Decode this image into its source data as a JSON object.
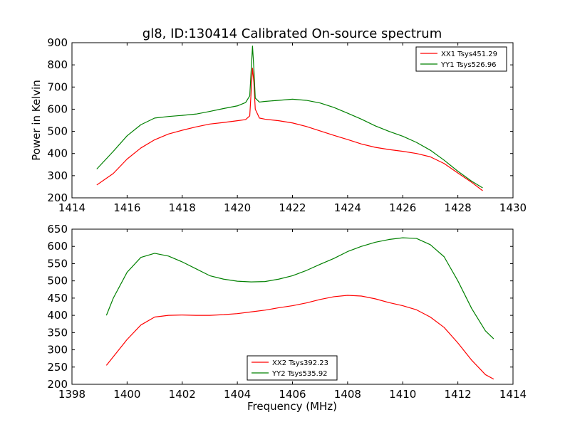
{
  "title": "gl8, ID:130414 Calibrated On-source spectrum",
  "chart_data": [
    {
      "type": "line",
      "title": "gl8, ID:130414 Calibrated On-source spectrum",
      "xlabel": "",
      "ylabel": "Power in Kelvin",
      "xlim": [
        1414,
        1430
      ],
      "ylim": [
        200,
        900
      ],
      "xticks": [
        1414,
        1416,
        1418,
        1420,
        1422,
        1424,
        1426,
        1428,
        1430
      ],
      "yticks": [
        200,
        300,
        400,
        500,
        600,
        700,
        800,
        900
      ],
      "grid": false,
      "legend_position": "top-right",
      "series": [
        {
          "name": "XX1 Tsys451.29",
          "color": "#ff0000",
          "x": [
            1414.9,
            1415.5,
            1416,
            1416.5,
            1417,
            1417.5,
            1418,
            1418.5,
            1419,
            1419.5,
            1420,
            1420.3,
            1420.45,
            1420.55,
            1420.6,
            1420.65,
            1420.8,
            1421,
            1421.5,
            1422,
            1422.5,
            1423,
            1423.5,
            1424,
            1424.5,
            1425,
            1425.5,
            1426,
            1426.5,
            1427,
            1427.5,
            1428,
            1428.5,
            1428.9
          ],
          "y": [
            258,
            310,
            375,
            425,
            462,
            488,
            505,
            520,
            533,
            540,
            548,
            553,
            570,
            785,
            720,
            600,
            560,
            555,
            548,
            538,
            522,
            502,
            482,
            463,
            443,
            428,
            418,
            410,
            400,
            385,
            355,
            312,
            270,
            232
          ]
        },
        {
          "name": "YY1 Tsys526.96",
          "color": "#008000",
          "x": [
            1414.9,
            1415.5,
            1416,
            1416.5,
            1417,
            1417.5,
            1418,
            1418.5,
            1419,
            1419.5,
            1420,
            1420.3,
            1420.45,
            1420.55,
            1420.6,
            1420.65,
            1420.8,
            1421,
            1421.5,
            1422,
            1422.5,
            1423,
            1423.5,
            1424,
            1424.5,
            1425,
            1425.5,
            1426,
            1426.5,
            1427,
            1427.5,
            1428,
            1428.5,
            1428.9
          ],
          "y": [
            330,
            410,
            480,
            530,
            560,
            567,
            572,
            578,
            590,
            603,
            615,
            630,
            660,
            885,
            780,
            650,
            632,
            635,
            640,
            645,
            640,
            628,
            608,
            582,
            555,
            525,
            500,
            478,
            450,
            415,
            370,
            320,
            275,
            245
          ]
        }
      ]
    },
    {
      "type": "line",
      "title": "",
      "xlabel": "Frequency (MHz)",
      "ylabel": "",
      "xlim": [
        1398,
        1414
      ],
      "ylim": [
        200,
        650
      ],
      "xticks": [
        1398,
        1400,
        1402,
        1404,
        1406,
        1408,
        1410,
        1412,
        1414
      ],
      "yticks": [
        200,
        250,
        300,
        350,
        400,
        450,
        500,
        550,
        600,
        650
      ],
      "grid": false,
      "legend_position": "bottom-center",
      "series": [
        {
          "name": "XX2 Tsys392.23",
          "color": "#ff0000",
          "x": [
            1399.25,
            1399.5,
            1400,
            1400.5,
            1401,
            1401.5,
            1402,
            1402.5,
            1403,
            1403.5,
            1404,
            1404.5,
            1405,
            1405.5,
            1406,
            1406.5,
            1407,
            1407.5,
            1408,
            1408.5,
            1409,
            1409.5,
            1410,
            1410.5,
            1411,
            1411.5,
            1412,
            1412.5,
            1413,
            1413.3
          ],
          "y": [
            255,
            280,
            330,
            372,
            395,
            400,
            401,
            400,
            400,
            402,
            405,
            410,
            415,
            422,
            428,
            436,
            446,
            454,
            458,
            456,
            448,
            437,
            428,
            416,
            395,
            365,
            320,
            270,
            228,
            215
          ]
        },
        {
          "name": "YY2 Tsys535.92",
          "color": "#008000",
          "x": [
            1399.25,
            1399.5,
            1400,
            1400.5,
            1401,
            1401.5,
            1402,
            1402.5,
            1403,
            1403.5,
            1404,
            1404.5,
            1405,
            1405.5,
            1406,
            1406.5,
            1407,
            1407.5,
            1408,
            1408.5,
            1409,
            1409.5,
            1410,
            1410.5,
            1411,
            1411.5,
            1412,
            1412.5,
            1413,
            1413.3
          ],
          "y": [
            400,
            450,
            525,
            568,
            580,
            572,
            555,
            535,
            515,
            505,
            499,
            497,
            498,
            505,
            515,
            530,
            548,
            565,
            585,
            600,
            612,
            620,
            625,
            623,
            605,
            570,
            500,
            420,
            355,
            332
          ]
        }
      ]
    }
  ]
}
